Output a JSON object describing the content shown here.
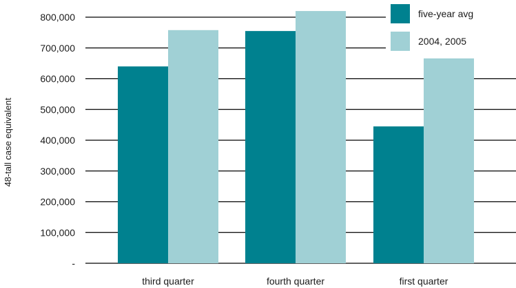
{
  "chart_data": {
    "type": "bar",
    "title": "",
    "xlabel": "",
    "ylabel": "48-tall case equivalent",
    "categories": [
      "third quarter",
      "fourth quarter",
      "first quarter"
    ],
    "series": [
      {
        "name": "five-year avg",
        "color": "#00818f",
        "values": [
          640000,
          755000,
          445000
        ]
      },
      {
        "name": "2004, 2005",
        "color": "#a0d0d5",
        "values": [
          758000,
          820000,
          677000
        ]
      }
    ],
    "ylim": [
      0,
      800000
    ],
    "yticks": [
      0,
      100000,
      200000,
      300000,
      400000,
      500000,
      600000,
      700000,
      800000
    ],
    "ytick_labels": [
      "-",
      "100,000",
      "200,000",
      "300,000",
      "400,000",
      "500,000",
      "600,000",
      "700,000",
      "800,000"
    ],
    "grid": true,
    "legend_position": "top-right"
  }
}
